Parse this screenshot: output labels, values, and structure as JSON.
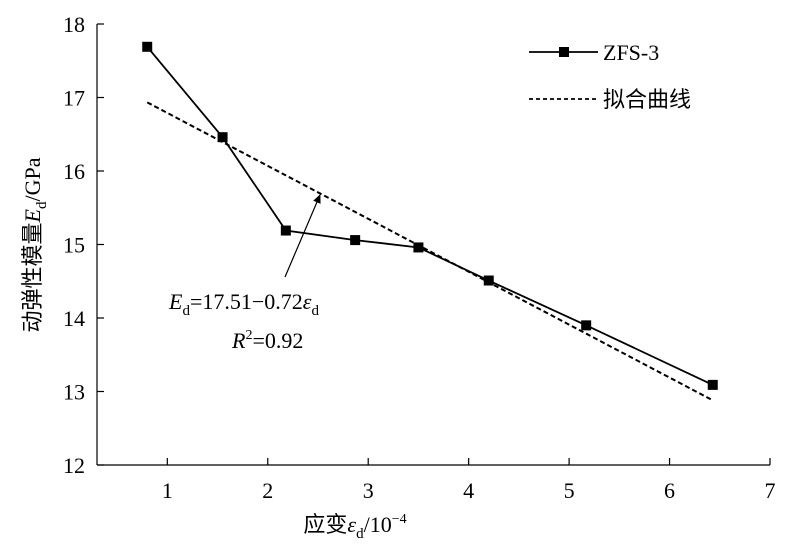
{
  "chart_data": {
    "type": "line",
    "x_axis": {
      "label_prefix": "应变",
      "symbol": "ε",
      "symbol_sub": "d",
      "unit": "/10",
      "unit_exp": "−4",
      "range": [
        0.3,
        7
      ],
      "ticks": [
        1,
        2,
        3,
        4,
        5,
        6,
        7
      ]
    },
    "y_axis": {
      "label_prefix": "动弹性模量",
      "symbol": "E",
      "symbol_sub": "d",
      "unit": "/GPa",
      "range": [
        12,
        18
      ],
      "ticks": [
        12,
        13,
        14,
        15,
        16,
        17,
        18
      ]
    },
    "series": [
      {
        "name": "ZFS-3",
        "style": "solid-square-markers",
        "color": "#000000",
        "x": [
          0.8,
          1.55,
          2.18,
          2.87,
          3.5,
          4.2,
          5.17,
          6.43
        ],
        "y": [
          17.69,
          16.46,
          15.19,
          15.06,
          14.96,
          14.51,
          13.9,
          13.09
        ]
      },
      {
        "name": "拟合曲线",
        "style": "dashed",
        "color": "#000000",
        "x": [
          0.8,
          6.43
        ],
        "y": [
          16.934,
          12.88
        ]
      }
    ],
    "annotation": {
      "eq_E": "E",
      "eq_E_sub": "d",
      "eq_body": "=17.51−0.72",
      "eq_eps": "ε",
      "eq_eps_sub": "d",
      "r2_R": "R",
      "r2_sup": "2",
      "r2_value": "=0.92",
      "arrow_target": {
        "x": 2.5,
        "y": 15.71
      }
    },
    "legend": {
      "position": "top-right"
    },
    "grid": false
  }
}
